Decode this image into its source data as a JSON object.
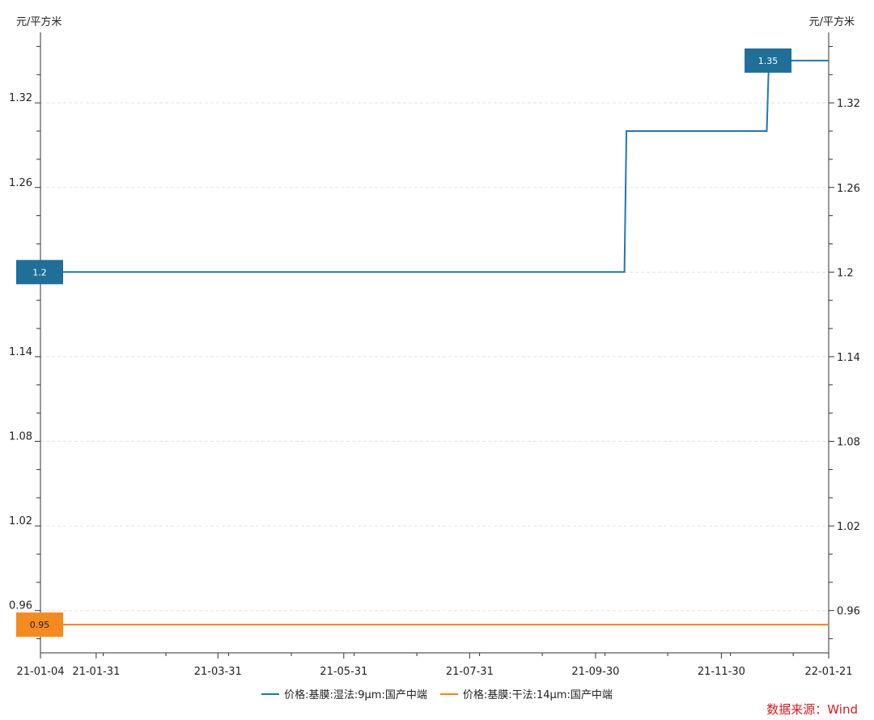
{
  "chart_data": {
    "type": "line",
    "step": true,
    "y_unit_left": "元/平方米",
    "y_unit_right": "元/平方米",
    "ylim": [
      0.93,
      1.37
    ],
    "y_ticks": [
      0.96,
      1.02,
      1.08,
      1.14,
      1.2,
      1.26,
      1.32
    ],
    "y_tick_labels": [
      "0.96",
      "1.02",
      "1.08",
      "1.14",
      "1.2",
      "1.26",
      "1.32"
    ],
    "xlim": [
      "2021-01-04",
      "2022-01-21"
    ],
    "x_ticks": [
      "2021-01-04",
      "2021-01-31",
      "2021-03-31",
      "2021-05-31",
      "2021-07-31",
      "2021-09-30",
      "2021-11-30",
      "2022-01-21"
    ],
    "x_tick_labels": [
      "21-01-04",
      "21-01-31",
      "21-03-31",
      "21-05-31",
      "21-07-31",
      "21-09-30",
      "21-11-30",
      "22-01-21"
    ],
    "grid": true,
    "legend_position": "bottom",
    "series": [
      {
        "name": "价格:基膜:湿法:9μm:国产中端",
        "color": "#1f77b4",
        "label_color": "#1f6f99",
        "points": [
          {
            "x": "2021-01-04",
            "y": 1.2
          },
          {
            "x": "2021-10-14",
            "y": 1.2
          },
          {
            "x": "2021-10-15",
            "y": 1.3
          },
          {
            "x": "2021-12-22",
            "y": 1.3
          },
          {
            "x": "2021-12-23",
            "y": 1.35
          },
          {
            "x": "2022-01-21",
            "y": 1.35
          }
        ],
        "labels": [
          {
            "x": "2021-01-04",
            "y": 1.2,
            "text": "1.2",
            "anchor": "start"
          },
          {
            "x": "2021-12-23",
            "y": 1.35,
            "text": "1.35",
            "anchor": "end"
          }
        ]
      },
      {
        "name": "价格:基膜:干法:14μm:国产中端",
        "color": "#ff7f0e",
        "label_color": "#f58a1f",
        "points": [
          {
            "x": "2021-01-04",
            "y": 0.95
          },
          {
            "x": "2022-01-21",
            "y": 0.95
          }
        ],
        "labels": [
          {
            "x": "2021-01-04",
            "y": 0.95,
            "text": "0.95",
            "anchor": "start"
          }
        ]
      }
    ]
  },
  "source_label": "数据来源：Wind"
}
